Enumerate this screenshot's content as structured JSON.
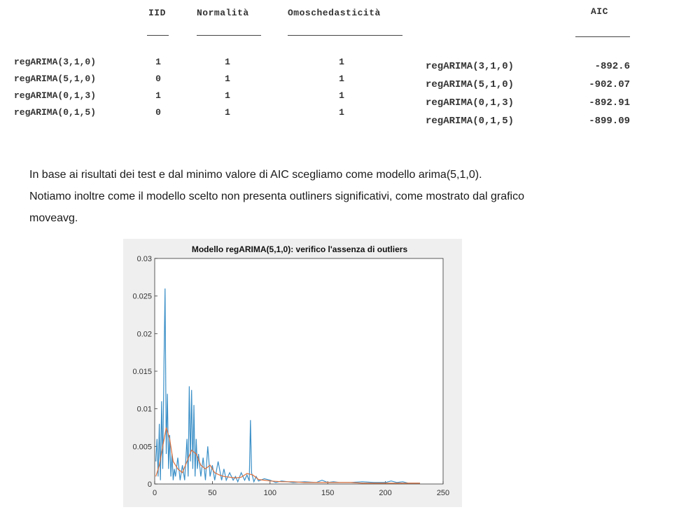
{
  "table1": {
    "headers": [
      "IID",
      "Normalità",
      "Omoschedasticità"
    ],
    "rows": [
      {
        "model": "regARIMA(3,1,0)",
        "iid": "1",
        "norm": "1",
        "omo": "1"
      },
      {
        "model": "regARIMA(5,1,0)",
        "iid": "0",
        "norm": "1",
        "omo": "1"
      },
      {
        "model": "regARIMA(0,1,3)",
        "iid": "1",
        "norm": "1",
        "omo": "1"
      },
      {
        "model": "regARIMA(0,1,5)",
        "iid": "0",
        "norm": "1",
        "omo": "1"
      }
    ]
  },
  "table2": {
    "header": "AIC",
    "rows": [
      {
        "model": "regARIMA(3,1,0)",
        "aic": "-892.6"
      },
      {
        "model": "regARIMA(5,1,0)",
        "aic": "-902.07"
      },
      {
        "model": "regARIMA(0,1,3)",
        "aic": "-892.91"
      },
      {
        "model": "regARIMA(0,1,5)",
        "aic": "-899.09"
      }
    ]
  },
  "text": {
    "line1": "In base ai risultati dei test e dal minimo valore di AIC scegliamo come modello arima(5,1,0).",
    "line2": "Notiamo inoltre come il modello scelto non presenta outliners significativi, come mostrato dal grafico",
    "line3": "moveavg."
  },
  "colors": {
    "series1": "#3a8fc7",
    "series2": "#e0703a"
  },
  "chart_data": {
    "type": "line",
    "title": "Modello regARIMA(5,1,0): verifico l'assenza di outliers",
    "xlabel": "",
    "ylabel": "",
    "xlim": [
      0,
      250
    ],
    "ylim": [
      0,
      0.03
    ],
    "xticks": [
      "0",
      "50",
      "100",
      "150",
      "200",
      "250"
    ],
    "yticks": [
      "0",
      "0.005",
      "0.01",
      "0.015",
      "0.02",
      "0.025",
      "0.03"
    ],
    "series": [
      {
        "x": [
          1,
          2,
          3,
          4,
          5,
          6,
          7,
          8,
          9,
          10,
          11,
          12,
          13,
          14,
          15,
          16,
          17,
          18,
          20,
          22,
          24,
          26,
          28,
          29,
          30,
          31,
          32,
          33,
          34,
          35,
          36,
          37,
          38,
          40,
          42,
          44,
          46,
          48,
          50,
          52,
          55,
          58,
          60,
          62,
          65,
          68,
          70,
          72,
          75,
          78,
          80,
          82,
          83,
          84,
          86,
          88,
          90,
          95,
          100,
          105,
          110,
          120,
          130,
          140,
          145,
          150,
          155,
          160,
          170,
          180,
          190,
          200,
          205,
          210,
          215,
          220,
          230
        ],
        "y": [
          0.003,
          0.006,
          0.001,
          0.008,
          0.0005,
          0.011,
          0.002,
          0.0155,
          0.026,
          0.004,
          0.012,
          0.002,
          0.0065,
          0.001,
          0.004,
          0.0005,
          0.002,
          0.001,
          0.0035,
          0.0005,
          0.0025,
          0.0005,
          0.006,
          0.001,
          0.013,
          0.003,
          0.0125,
          0.002,
          0.0105,
          0.001,
          0.006,
          0.002,
          0.004,
          0.001,
          0.0035,
          0.0005,
          0.005,
          0.001,
          0.0025,
          0.0005,
          0.003,
          0.0005,
          0.002,
          0.0005,
          0.0015,
          0.0005,
          0.001,
          0.0003,
          0.0015,
          0.0005,
          0.0012,
          0.0004,
          0.0085,
          0.0015,
          0.0003,
          0.001,
          0.0004,
          0.0007,
          0.0005,
          0.0002,
          0.0004,
          0.0002,
          0.0003,
          0.0002,
          0.0005,
          0.0002,
          0.0003,
          0.0002,
          0.0002,
          0.0003,
          0.0002,
          0.0002,
          0.0004,
          0.0002,
          0.0003,
          0.0001,
          0.0001
        ]
      },
      {
        "x": [
          1,
          4,
          7,
          10,
          13,
          16,
          20,
          24,
          28,
          32,
          36,
          40,
          44,
          48,
          52,
          56,
          60,
          65,
          70,
          75,
          80,
          85,
          90,
          95,
          100,
          110,
          120,
          130,
          140,
          150,
          160,
          170,
          180,
          200,
          220,
          230
        ],
        "y": [
          0.001,
          0.0025,
          0.005,
          0.0075,
          0.006,
          0.003,
          0.002,
          0.0015,
          0.003,
          0.0045,
          0.004,
          0.0025,
          0.002,
          0.0025,
          0.0015,
          0.0012,
          0.001,
          0.0009,
          0.0008,
          0.0009,
          0.0014,
          0.0012,
          0.0006,
          0.0005,
          0.0004,
          0.0003,
          0.0003,
          0.0002,
          0.0002,
          0.0002,
          0.0002,
          0.0002,
          0.0001,
          0.0001,
          0.0001,
          0.0001
        ]
      }
    ]
  }
}
